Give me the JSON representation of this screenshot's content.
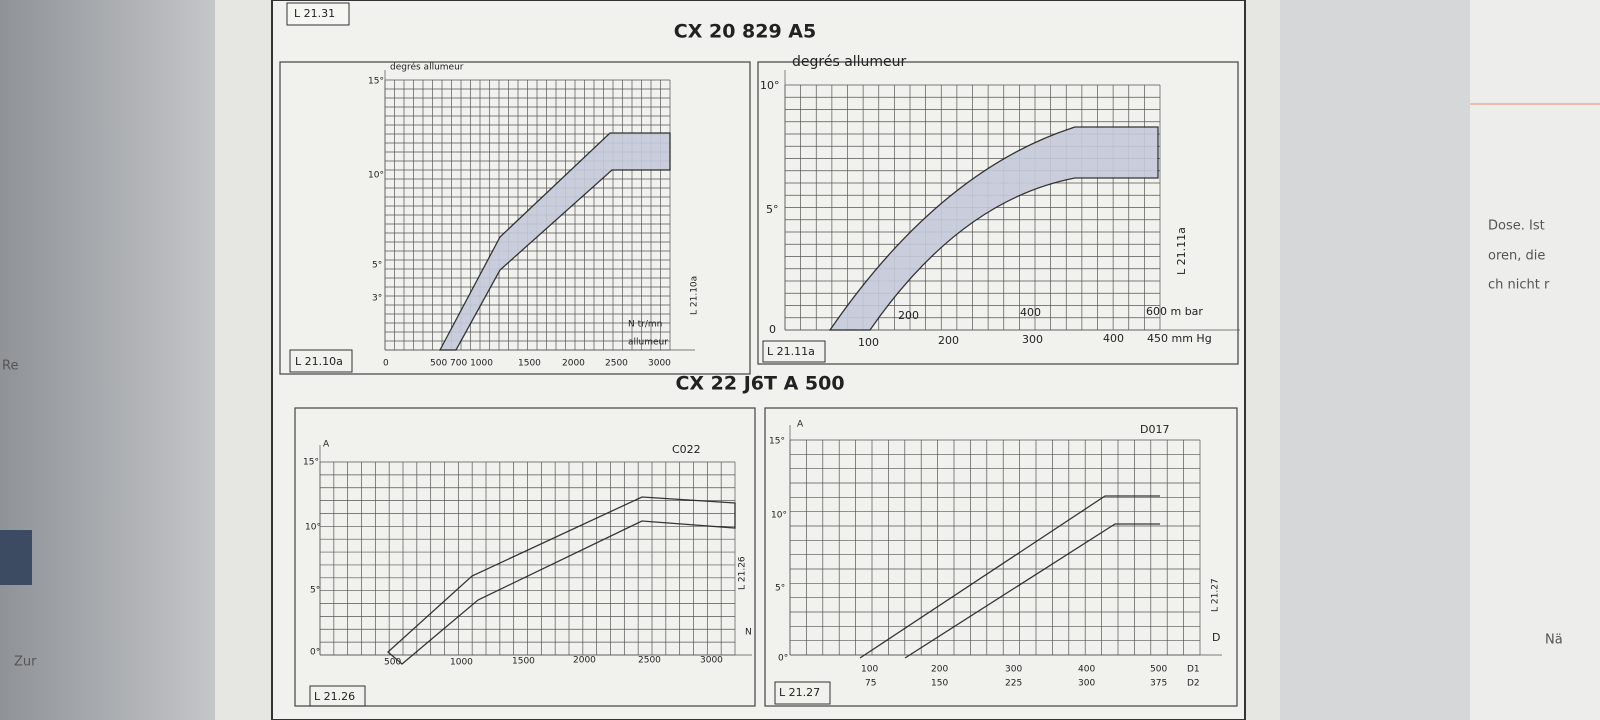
{
  "header_label": "L 21.31",
  "title": "CX 20 829 A5",
  "subtitle": "CX 22 J6T A 500",
  "diagrams": [
    {
      "y_label": "degrés allumeur",
      "y_ticks": [
        "15°",
        "10°",
        "5°",
        "3°"
      ],
      "x_ticks": [
        "0",
        "500 700 1000",
        "1500",
        "2000",
        "2500",
        "3000"
      ],
      "x_label": [
        "N tr/mn",
        "allumeur"
      ],
      "side_code": "L 21.10a",
      "code": "L 21.10a"
    },
    {
      "y_label": "degrés allumeur",
      "y_ticks": [
        "10°",
        "5°",
        "0"
      ],
      "x_ticks_top": [
        "200",
        "400",
        "600 m  bar"
      ],
      "x_ticks": [
        "100",
        "200",
        "300",
        "400",
        "450 mm  Hg"
      ],
      "side_code": "L 21.11a",
      "code": "L 21.11a"
    },
    {
      "y_label": "A",
      "y_ticks": [
        "15°",
        "10°",
        "5°",
        "0°"
      ],
      "curve_code": "C022",
      "x_label": "N",
      "x_ticks": [
        "500",
        "1000",
        "1500",
        "2000",
        "2500",
        "3000"
      ],
      "side_code": "L 21.26",
      "code": "L 21.26"
    },
    {
      "y_label": "A",
      "y_ticks": [
        "15°",
        "10°",
        "5°",
        "0°"
      ],
      "curve_code": "D017",
      "x_label": "D",
      "x_ticks": [
        "100",
        "200",
        "300",
        "400",
        "500",
        "D1"
      ],
      "x_ticks_2": [
        "75",
        "150",
        "225",
        "300",
        "375",
        "D2"
      ],
      "side_code": "L 21.27",
      "code": "L 21.27"
    }
  ],
  "side_text": {
    "left": [
      "Re",
      "Zur"
    ],
    "right": [
      "Dose. Ist",
      "oren, die",
      "ch nicht r",
      "Nä"
    ]
  }
}
